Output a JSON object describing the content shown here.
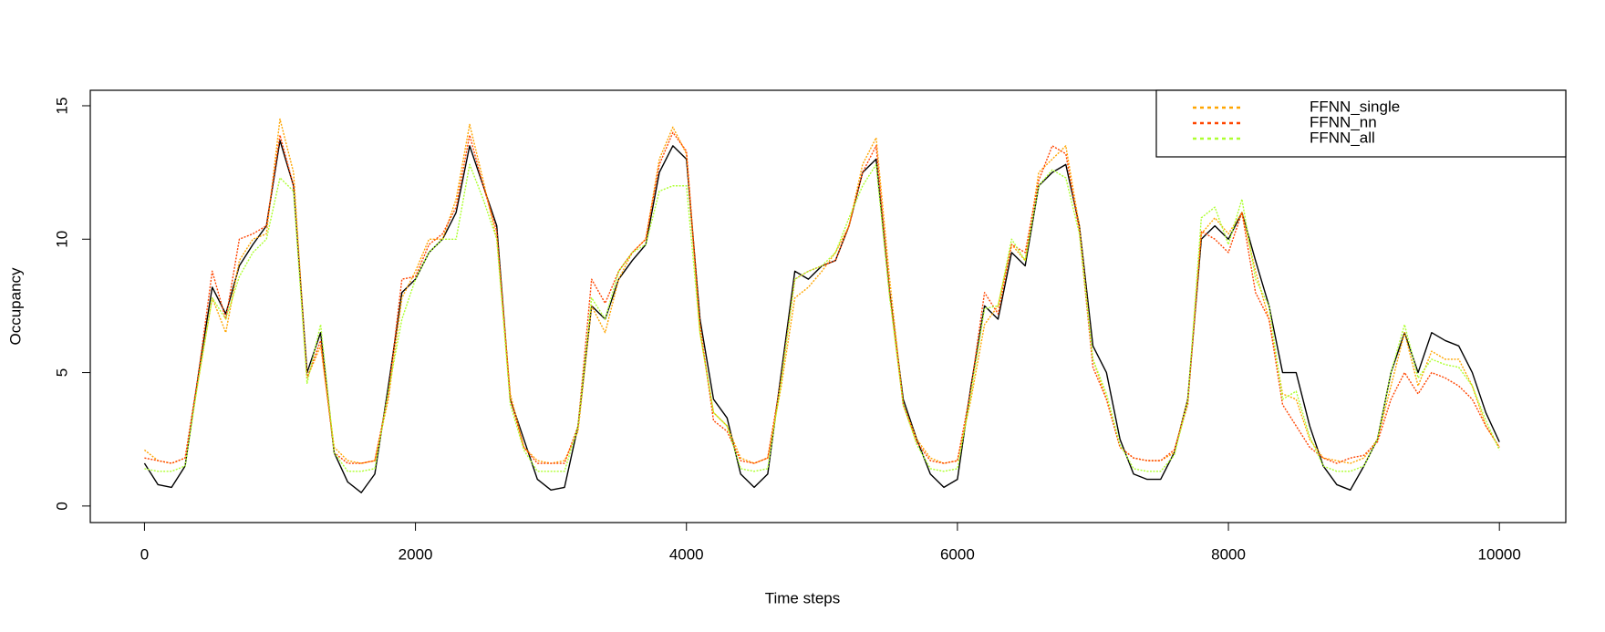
{
  "chart_data": {
    "type": "line",
    "xlabel": "Time steps",
    "ylabel": "Occupancy",
    "xlim": [
      -400,
      10490
    ],
    "ylim": [
      -0.62,
      15.58
    ],
    "xticks": [
      0,
      2000,
      4000,
      6000,
      8000,
      10000
    ],
    "yticks": [
      0,
      5,
      10,
      15
    ],
    "legend": "top-right",
    "x": [
      0,
      100,
      200,
      300,
      400,
      500,
      600,
      700,
      800,
      900,
      1000,
      1100,
      1200,
      1300,
      1400,
      1500,
      1600,
      1700,
      1800,
      1900,
      2000,
      2100,
      2200,
      2300,
      2400,
      2500,
      2600,
      2700,
      2800,
      2900,
      3000,
      3100,
      3200,
      3300,
      3400,
      3500,
      3600,
      3700,
      3800,
      3900,
      4000,
      4100,
      4200,
      4300,
      4400,
      4500,
      4600,
      4700,
      4800,
      4900,
      5000,
      5100,
      5200,
      5300,
      5400,
      5500,
      5600,
      5700,
      5800,
      5900,
      6000,
      6100,
      6200,
      6300,
      6400,
      6500,
      6600,
      6700,
      6800,
      6900,
      7000,
      7100,
      7200,
      7300,
      7400,
      7500,
      7600,
      7700,
      7800,
      7900,
      8000,
      8100,
      8200,
      8300,
      8400,
      8500,
      8600,
      8700,
      8800,
      8900,
      9000,
      9100,
      9200,
      9300,
      9400,
      9500,
      9600,
      9700,
      9800,
      9900,
      10000
    ],
    "series": [
      {
        "color": "#000000",
        "dashed": false,
        "values": [
          1.6,
          0.8,
          0.7,
          1.5,
          5,
          8.2,
          7.2,
          9,
          9.8,
          10.5,
          13.7,
          12,
          5,
          6.5,
          2,
          0.9,
          0.5,
          1.2,
          4.5,
          8,
          8.5,
          9.5,
          10,
          11,
          13.5,
          12,
          10.5,
          4,
          2.5,
          1,
          0.6,
          0.7,
          3,
          7.5,
          7,
          8.5,
          9.2,
          9.8,
          12.5,
          13.5,
          13,
          7,
          4,
          3.3,
          1.2,
          0.7,
          1.2,
          5,
          8.8,
          8.5,
          9,
          9.2,
          10.5,
          12.5,
          13,
          8,
          4,
          2.5,
          1.2,
          0.7,
          1,
          4.5,
          7.5,
          7,
          9.5,
          9,
          12,
          12.5,
          12.8,
          10.5,
          6,
          5,
          2.5,
          1.2,
          1,
          1,
          2,
          4,
          10,
          10.5,
          10,
          11,
          9.2,
          7.5,
          5,
          5,
          3,
          1.5,
          0.8,
          0.6,
          1.5,
          2.5,
          5,
          6.5,
          5,
          6.5,
          6.2,
          6,
          5,
          3.5,
          2.4
        ]
      },
      {
        "name": "FFNN_single",
        "color": "#FFA500",
        "dashed": true,
        "values": [
          2.1,
          1.7,
          1.6,
          1.8,
          4.8,
          7.8,
          6.5,
          9.2,
          10,
          10.2,
          14.5,
          12.5,
          4.8,
          6,
          2.2,
          1.7,
          1.6,
          1.7,
          4,
          7.8,
          8.8,
          10,
          10,
          11.5,
          14.3,
          12.2,
          10,
          4.2,
          2.2,
          1.7,
          1.6,
          1.7,
          2.8,
          7.5,
          6.5,
          8.5,
          9.5,
          10,
          13,
          14.2,
          13.2,
          6.5,
          3.5,
          3,
          1.8,
          1.6,
          1.8,
          4.5,
          7.8,
          8.2,
          8.8,
          9.5,
          10.5,
          12.8,
          13.8,
          8.5,
          3.8,
          2.5,
          1.8,
          1.6,
          1.7,
          4,
          6.8,
          7.5,
          9.8,
          9.2,
          12.5,
          13,
          13.5,
          10.5,
          5.5,
          4,
          2.2,
          1.8,
          1.7,
          1.7,
          2,
          4,
          10.2,
          10.8,
          10.2,
          11,
          8.8,
          7,
          4.2,
          4,
          2.5,
          1.8,
          1.7,
          1.6,
          1.8,
          2.5,
          4.5,
          6.5,
          4.5,
          5.8,
          5.5,
          5.5,
          4.5,
          3,
          2.2
        ]
      },
      {
        "name": "FFNN_nn",
        "color": "#FF4500",
        "dashed": true,
        "values": [
          1.8,
          1.7,
          1.6,
          1.8,
          5,
          8.8,
          7,
          10,
          10.2,
          10.5,
          13.9,
          12,
          4.8,
          6.2,
          2,
          1.6,
          1.6,
          1.7,
          4.2,
          8.5,
          8.6,
          9.8,
          10.2,
          11.2,
          13.9,
          12,
          10.3,
          4,
          2.2,
          1.6,
          1.6,
          1.6,
          3,
          8.5,
          7.6,
          8.8,
          9.5,
          10,
          12.8,
          14,
          13.3,
          6.8,
          3.2,
          2.8,
          1.7,
          1.6,
          1.8,
          4.8,
          8.5,
          8.8,
          9,
          9.2,
          10.5,
          12.5,
          13.5,
          8,
          3.8,
          2.4,
          1.7,
          1.6,
          1.7,
          4.4,
          8,
          7.2,
          9.8,
          9.5,
          12.2,
          13.5,
          13.2,
          10.3,
          5.2,
          4,
          2.2,
          1.8,
          1.7,
          1.7,
          2.1,
          3.8,
          10.3,
          10,
          9.5,
          11,
          8,
          7,
          3.8,
          3,
          2.2,
          1.8,
          1.6,
          1.8,
          1.9,
          2.4,
          4,
          5,
          4.2,
          5,
          4.8,
          4.5,
          4,
          3,
          2.2
        ]
      },
      {
        "name": "FFNN_all",
        "color": "#ADFF2F",
        "dashed": true,
        "values": [
          1.4,
          1.3,
          1.3,
          1.5,
          4.8,
          7.8,
          7,
          8.6,
          9.5,
          10,
          12.3,
          11.8,
          4.6,
          6.8,
          2,
          1.3,
          1.3,
          1.4,
          4.3,
          7,
          8.5,
          9.5,
          10,
          10,
          12.8,
          11.5,
          10,
          3.8,
          2.1,
          1.3,
          1.3,
          1.3,
          3,
          7.8,
          7,
          8.8,
          9.5,
          9.8,
          11.8,
          12,
          12,
          6.5,
          3.5,
          3,
          1.4,
          1.3,
          1.4,
          4.7,
          8.5,
          8.8,
          9,
          9.5,
          10.8,
          12,
          12.8,
          7.8,
          3.8,
          2.3,
          1.4,
          1.3,
          1.4,
          4.2,
          7.4,
          7.5,
          10,
          9.2,
          12,
          12.6,
          12.3,
          10.2,
          5.5,
          4.2,
          2.3,
          1.4,
          1.3,
          1.3,
          1.9,
          3.9,
          10.8,
          11.2,
          9.8,
          11.5,
          8.5,
          7.5,
          4,
          4.3,
          2.6,
          1.5,
          1.3,
          1.3,
          1.5,
          2.5,
          5,
          6.8,
          4.8,
          5.5,
          5.3,
          5.2,
          4.5,
          3.2,
          2.1
        ]
      }
    ]
  }
}
